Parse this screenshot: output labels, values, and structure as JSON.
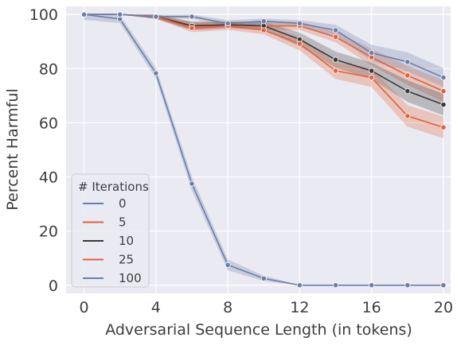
{
  "chart_data": {
    "type": "line",
    "title": "",
    "xlabel": "Adversarial Sequence Length (in tokens)",
    "ylabel": "Percent Harmful",
    "xlim": [
      -1,
      20.4
    ],
    "ylim": [
      -3,
      103
    ],
    "xticks": [
      0,
      4,
      8,
      12,
      16,
      20
    ],
    "yticks": [
      0,
      20,
      40,
      60,
      80,
      100
    ],
    "x": [
      0,
      2,
      4,
      6,
      8,
      10,
      12,
      14,
      16,
      18,
      20
    ],
    "grid": true,
    "legend": {
      "title": "# Iterations",
      "placement": "lower-left"
    },
    "series": [
      {
        "name": "0",
        "color": "#6b7fa8",
        "values": [
          100,
          98.3,
          78.3,
          37.5,
          7.5,
          2.5,
          0,
          0,
          0,
          0,
          0
        ],
        "band": [
          2,
          1.5,
          2,
          2.5,
          2,
          1,
          0,
          0,
          0,
          0,
          0
        ]
      },
      {
        "name": "5",
        "color": "#e2623a",
        "values": [
          100,
          100,
          99.2,
          95.8,
          96.2,
          95.8,
          95.8,
          91.7,
          84.2,
          77.5,
          71.7
        ],
        "band": [
          0,
          0,
          0.8,
          1.5,
          1.2,
          1.5,
          1.5,
          2,
          3,
          3.5,
          4
        ]
      },
      {
        "name": "10",
        "color": "#3a3a3a",
        "values": [
          100,
          100,
          99.2,
          95.8,
          96.2,
          95.8,
          90.8,
          83.3,
          79.2,
          71.7,
          66.7
        ],
        "band": [
          0,
          0,
          0.8,
          1.5,
          1.2,
          1.5,
          2.5,
          3,
          3,
          4,
          4
        ]
      },
      {
        "name": "25",
        "color": "#e2623a",
        "values": [
          100,
          100,
          99.2,
          95,
          95.8,
          94.2,
          89.2,
          79.2,
          76.7,
          62.5,
          58.3
        ],
        "band": [
          0,
          0,
          0.8,
          1.5,
          1.5,
          1.5,
          2.5,
          3,
          3.5,
          4,
          4
        ]
      },
      {
        "name": "100",
        "color": "#6b7fa8",
        "values": [
          100,
          100,
          99.2,
          99.2,
          96.7,
          97.5,
          96.7,
          94.2,
          85.8,
          82.5,
          76.7
        ],
        "band": [
          0,
          0,
          0.8,
          0.8,
          1.2,
          1,
          1.2,
          2,
          3,
          3.5,
          3.5
        ]
      }
    ]
  }
}
